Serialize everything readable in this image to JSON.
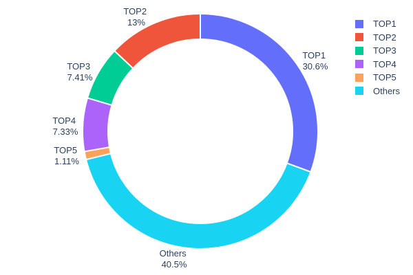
{
  "chart_data": {
    "type": "pie",
    "subtype": "donut",
    "title": "",
    "hole_ratio": 0.78,
    "background_color": "#ffffff",
    "text_color": "#2a3f5f",
    "slice_border_color": "#ffffff",
    "legend_position": "right",
    "labels_position": "outside",
    "slices": [
      {
        "label": "TOP1",
        "value": 30.6,
        "percent_label": "30.6%",
        "color": "#636efa"
      },
      {
        "label": "TOP2",
        "value": 13,
        "percent_label": "13%",
        "color": "#ef553b"
      },
      {
        "label": "TOP3",
        "value": 7.41,
        "percent_label": "7.41%",
        "color": "#00cc96"
      },
      {
        "label": "TOP4",
        "value": 7.33,
        "percent_label": "7.33%",
        "color": "#ab63fa"
      },
      {
        "label": "TOP5",
        "value": 1.11,
        "percent_label": "1.11%",
        "color": "#ffa15a"
      },
      {
        "label": "Others",
        "value": 40.5,
        "percent_label": "40.5%",
        "color": "#19d3f3"
      }
    ],
    "draw_order_clockwise_from_top": [
      "TOP1",
      "Others",
      "TOP5",
      "TOP4",
      "TOP3",
      "TOP2"
    ],
    "legend_items": [
      "TOP1",
      "TOP2",
      "TOP3",
      "TOP4",
      "TOP5",
      "Others"
    ]
  }
}
